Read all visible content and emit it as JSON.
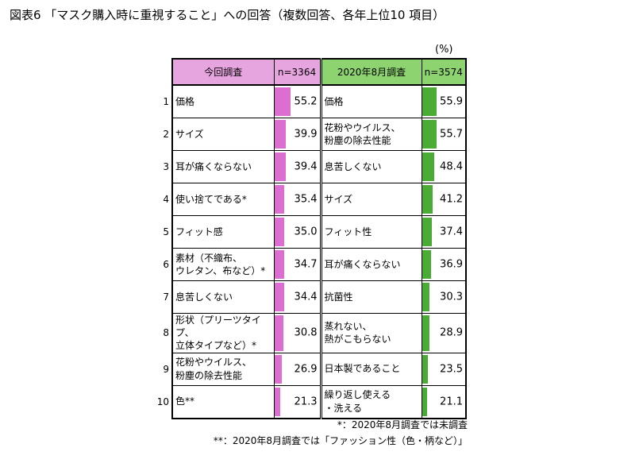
{
  "title": "図表6 「マスク購入時に重視すること」への回答（複数回答、各年上位10 項目）",
  "unit": "(%)",
  "header": {
    "current_label": "今回調査",
    "current_n": "n=3364",
    "prev_label": "2020年8月調査",
    "prev_n": "n=3574"
  },
  "notes": [
    "*：2020年8月調査では未調査",
    "**：2020年8月調査では「ファッション性（色・柄など）」"
  ],
  "colors": {
    "current_bar": "#dc6ed2",
    "prev_bar": "#4bac35",
    "current_header": "#e7a5e0",
    "prev_header": "#8dd36f"
  },
  "chart_data": {
    "type": "bar",
    "title": "図表6 「マスク購入時に重視すること」への回答（複数回答、各年上位10 項目）",
    "unit": "(%)",
    "xlim": [
      0,
      100
    ],
    "series": [
      {
        "name": "今回調査",
        "n": "n=3364",
        "ranks": [
          "1",
          "2",
          "3",
          "4",
          "5",
          "6",
          "7",
          "8",
          "9",
          "10"
        ],
        "categories": [
          "価格",
          "サイズ",
          "耳が痛くならない",
          "使い捨てである*",
          "フィット感",
          "素材（不織布、\nウレタン、布など）*",
          "息苦しくない",
          "形状（プリーツタイプ、\n立体タイプなど）*",
          "花粉やウイルス、\n粉塵の除去性能",
          "色**"
        ],
        "values": [
          55.2,
          39.9,
          39.4,
          35.4,
          35.0,
          34.7,
          34.4,
          30.8,
          26.9,
          21.3
        ]
      },
      {
        "name": "2020年8月調査",
        "n": "n=3574",
        "categories": [
          "価格",
          "花粉やウイルス、\n粉塵の除去性能",
          "息苦しくない",
          "サイズ",
          "フィット性",
          "耳が痛くならない",
          "抗菌性",
          "蒸れない、\n熱がこもらない",
          "日本製であること",
          "繰り返し使える\n・洗える"
        ],
        "values": [
          55.9,
          55.7,
          48.4,
          41.2,
          37.4,
          36.9,
          30.3,
          28.9,
          23.5,
          21.1
        ]
      }
    ]
  }
}
